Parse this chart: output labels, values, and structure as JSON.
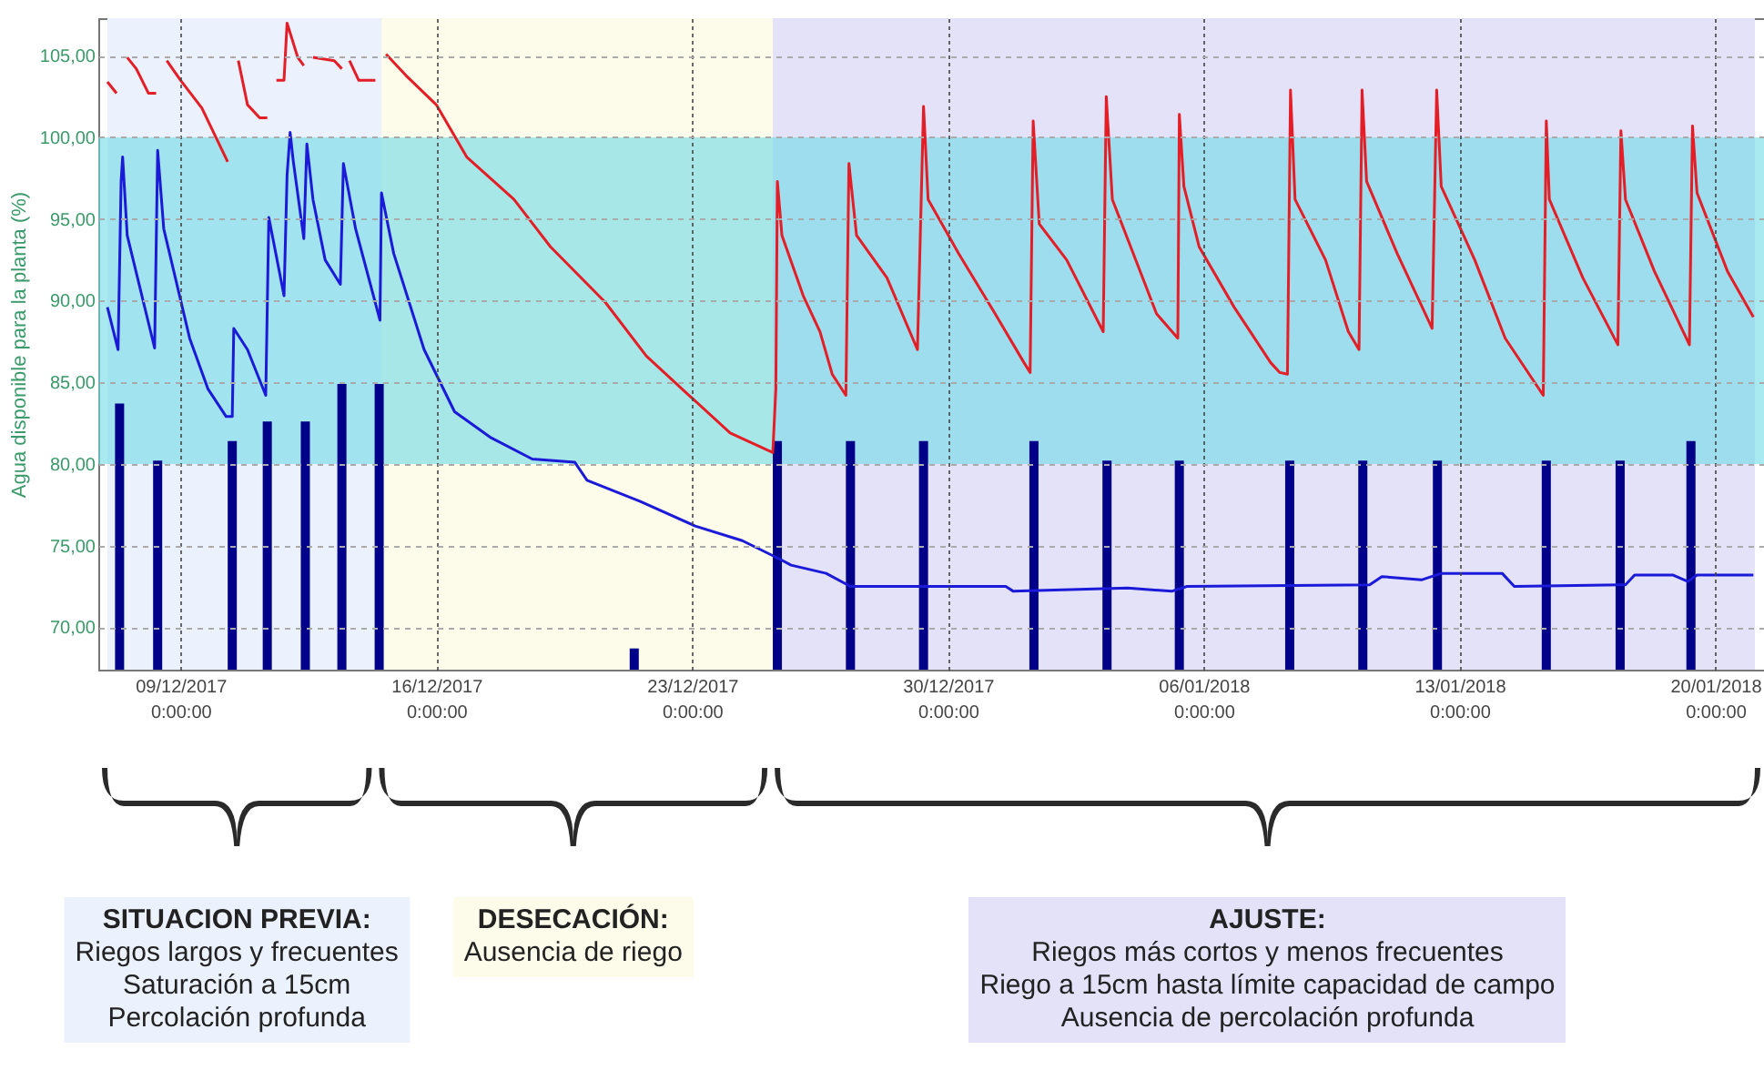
{
  "chart_data": {
    "type": "line",
    "ylabel": "Agua disponible para la planta (%)",
    "xlim": [
      "2017-12-07T00:00",
      "2018-01-21T02:00"
    ],
    "ylim": [
      67.4,
      107.3
    ],
    "xticks": [
      {
        "value": "2017-12-09",
        "label": "09/12/2017\n0:00:00"
      },
      {
        "value": "2017-12-16",
        "label": "16/12/2017\n0:00:00"
      },
      {
        "value": "2017-12-23",
        "label": "23/12/2017\n0:00:00"
      },
      {
        "value": "2017-12-30",
        "label": "30/12/2017\n0:00:00"
      },
      {
        "value": "2018-01-06",
        "label": "06/01/2018\n0:00:00"
      },
      {
        "value": "2018-01-13",
        "label": "13/01/2018\n0:00:00"
      },
      {
        "value": "2018-01-20",
        "label": "20/01/2018\n0:00:00"
      }
    ],
    "yticks": [
      {
        "value": 70,
        "label": "70,00"
      },
      {
        "value": 75,
        "label": "75,00"
      },
      {
        "value": 80,
        "label": "80,00"
      },
      {
        "value": 85,
        "label": "85,00"
      },
      {
        "value": 90,
        "label": "90,00"
      },
      {
        "value": 95,
        "label": "95,00"
      },
      {
        "value": 100,
        "label": "100,00"
      },
      {
        "value": 105,
        "label": "105,00"
      }
    ],
    "grid": true,
    "annotations": [
      "SITUACION PREVIA:\nRiegos largos y frecuentes\nSaturación a 15cm\nPercolación profunda",
      "DESECACIÓN:\nAusencia de riego",
      "AJUSTE:\nRiegos más cortos y menos frecuentes\nRiego a 15cm hasta límite capacidad de campo\nAusencia de percolación profunda"
    ],
    "bands": [
      {
        "axis": "x",
        "from": "2017-12-07T00:00",
        "to": "2017-12-14T12:00",
        "color": "#ebf1fd"
      },
      {
        "axis": "x",
        "from": "2017-12-14T12:00",
        "to": "2017-12-25T05:00",
        "color": "#fdfbe9"
      },
      {
        "axis": "x",
        "from": "2017-12-25T05:00",
        "to": "2018-01-21T02:00",
        "color": "#e3e2f8"
      },
      {
        "axis": "y",
        "from": 80,
        "to": 100,
        "color": "#70dae6"
      }
    ],
    "series": [
      {
        "type": "bar",
        "color": "#000088",
        "x": [
          "2017-12-07T08:00",
          "2017-12-08T09:00",
          "2017-12-10T10:00",
          "2017-12-11T09:00",
          "2017-12-12T10:00",
          "2017-12-13T10:00",
          "2017-12-14T10:30",
          "2017-12-21T10:00",
          "2017-12-25T08:00",
          "2017-12-27T08:00",
          "2017-12-29T08:00",
          "2018-01-01T08:30",
          "2018-01-03T08:30",
          "2018-01-05T08:00",
          "2018-01-08T08:30",
          "2018-01-10T08:30",
          "2018-01-12T09:30",
          "2018-01-15T09:00",
          "2018-01-17T09:30",
          "2018-01-19T08:00"
        ],
        "values": [
          83.7,
          80.2,
          81.4,
          82.6,
          82.6,
          84.9,
          84.9,
          68.7,
          81.4,
          81.4,
          81.4,
          81.4,
          80.2,
          80.2,
          80.2,
          80.2,
          80.2,
          80.2,
          80.2,
          81.4
        ]
      },
      {
        "color": "#e41e26",
        "x": [
          "2017-12-07T00:00",
          "2017-12-07T06:00",
          "2017-12-07T08:00",
          "2017-12-07T13:00",
          "2017-12-07T19:00",
          "2017-12-08T03:00",
          "2017-12-08T08:00",
          "2017-12-08T10:00",
          "2017-12-08T15:00",
          "2017-12-09T00:00",
          "2017-12-09T14:00",
          "2017-12-10T07:00",
          "2017-12-10T09:00",
          "2017-12-10T14:00",
          "2017-12-10T20:00",
          "2017-12-11T04:00",
          "2017-12-11T09:00",
          "2017-12-11T10:00",
          "2017-12-11T15:00",
          "2017-12-11T20:00",
          "2017-12-11T22:00",
          "2017-12-12T05:00",
          "2017-12-12T09:00",
          "2017-12-12T10:00",
          "2017-12-12T15:00",
          "2017-12-13T05:00",
          "2017-12-13T10:00",
          "2017-12-13T11:00",
          "2017-12-13T15:00",
          "2017-12-13T21:00",
          "2017-12-14T08:00",
          "2017-12-14T10:00",
          "2017-12-14T15:00",
          "2017-12-15T04:00",
          "2017-12-16T00:00",
          "2017-12-16T20:00",
          "2017-12-18T03:00",
          "2017-12-19T03:00",
          "2017-12-20T15:00",
          "2017-12-21T18:00",
          "2017-12-22T22:00",
          "2017-12-24T01:00",
          "2017-12-25T05:00",
          "2017-12-25T07:00",
          "2017-12-25T08:00",
          "2017-12-25T11:00",
          "2017-12-26T01:00",
          "2017-12-26T12:00",
          "2017-12-26T20:00",
          "2017-12-27T05:00",
          "2017-12-27T07:00",
          "2017-12-27T12:00",
          "2017-12-28T08:00",
          "2017-12-29T04:00",
          "2017-12-29T08:00",
          "2017-12-29T11:00",
          "2017-12-30T07:00",
          "2017-12-31T07:00",
          "2018-01-01T02:00",
          "2018-01-01T06:00",
          "2018-01-01T08:00",
          "2018-01-01T12:00",
          "2018-01-02T06:00",
          "2018-01-03T06:00",
          "2018-01-03T08:00",
          "2018-01-03T12:00",
          "2018-01-04T05:00",
          "2018-01-04T17:00",
          "2018-01-05T07:00",
          "2018-01-05T08:00",
          "2018-01-05T11:00",
          "2018-01-05T21:00",
          "2018-01-06T20:00",
          "2018-01-07T20:00",
          "2018-01-08T02:00",
          "2018-01-08T07:00",
          "2018-01-08T09:00",
          "2018-01-08T12:00",
          "2018-01-09T08:00",
          "2018-01-09T23:00",
          "2018-01-10T06:00",
          "2018-01-10T08:00",
          "2018-01-10T11:00",
          "2018-01-11T07:00",
          "2018-01-12T06:00",
          "2018-01-12T09:00",
          "2018-01-12T12:00",
          "2018-01-13T10:00",
          "2018-01-14T06:00",
          "2018-01-15T07:00",
          "2018-01-15T09:00",
          "2018-01-15T11:00",
          "2018-01-16T09:00",
          "2018-01-17T08:00",
          "2018-01-17T10:00",
          "2018-01-17T13:00",
          "2018-01-18T08:00",
          "2018-01-19T07:00",
          "2018-01-19T09:00",
          "2018-01-19T12:00",
          "2018-01-20T08:00",
          "2018-01-21T01:00"
        ],
        "values": [
          103.4,
          102.7,
          null,
          104.9,
          104.2,
          102.7,
          102.7,
          null,
          104.7,
          103.5,
          101.8,
          98.5,
          null,
          104.7,
          102.0,
          101.2,
          101.2,
          null,
          103.5,
          103.5,
          107.0,
          104.9,
          104.4,
          null,
          104.9,
          104.7,
          104.2,
          null,
          104.7,
          103.5,
          103.5,
          null,
          105.1,
          103.8,
          102.0,
          98.8,
          96.2,
          93.3,
          89.9,
          86.6,
          84.2,
          81.9,
          80.7,
          84.6,
          97.3,
          94.0,
          90.3,
          88.1,
          85.5,
          84.2,
          98.4,
          94.0,
          91.4,
          87.0,
          101.9,
          96.2,
          92.9,
          89.2,
          86.2,
          85.6,
          101.0,
          94.7,
          92.5,
          88.1,
          102.5,
          96.2,
          92.1,
          89.2,
          87.7,
          101.4,
          97.0,
          93.3,
          89.6,
          86.2,
          85.6,
          85.5,
          102.9,
          96.2,
          92.5,
          88.1,
          87.0,
          102.9,
          97.3,
          92.9,
          88.3,
          102.9,
          97.0,
          92.5,
          87.7,
          84.2,
          101.0,
          96.2,
          91.4,
          87.3,
          100.4,
          96.2,
          91.8,
          87.3,
          100.7,
          96.6,
          91.8,
          89.0
        ]
      },
      {
        "color": "#1a1ad8",
        "x": [
          "2017-12-07T00:00",
          "2017-12-07T07:00",
          "2017-12-07T09:00",
          "2017-12-07T10:00",
          "2017-12-07T13:00",
          "2017-12-08T07:00",
          "2017-12-08T09:00",
          "2017-12-08T13:00",
          "2017-12-09T06:00",
          "2017-12-09T18:00",
          "2017-12-10T06:00",
          "2017-12-10T10:00",
          "2017-12-10T11:00",
          "2017-12-10T20:00",
          "2017-12-11T08:00",
          "2017-12-11T10:00",
          "2017-12-11T20:00",
          "2017-12-11T22:00",
          "2017-12-12T00:00",
          "2017-12-12T02:00",
          "2017-12-12T09:00",
          "2017-12-12T11:00",
          "2017-12-12T15:00",
          "2017-12-12T23:00",
          "2017-12-13T09:00",
          "2017-12-13T11:00",
          "2017-12-13T19:00",
          "2017-12-14T11:00",
          "2017-12-14T12:00",
          "2017-12-14T20:00",
          "2017-12-15T16:00",
          "2017-12-16T12:00",
          "2017-12-17T12:00",
          "2017-12-18T15:00",
          "2017-12-19T19:00",
          "2017-12-20T03:00",
          "2017-12-21T14:00",
          "2017-12-23T02:00",
          "2017-12-24T09:00",
          "2017-12-25T09:00",
          "2017-12-25T17:00",
          "2017-12-26T16:00",
          "2017-12-27T08:00",
          "2017-12-31T14:00",
          "2017-12-31T19:00",
          "2018-01-03T22:00",
          "2018-01-05T03:00",
          "2018-01-05T13:00",
          "2018-01-10T13:00",
          "2018-01-10T21:00",
          "2018-01-11T23:00",
          "2018-01-12T12:00",
          "2018-01-14T04:00",
          "2018-01-14T12:00",
          "2018-01-17T13:00",
          "2018-01-17T19:00",
          "2018-01-18T20:00",
          "2018-01-19T06:00",
          "2018-01-19T12:00",
          "2018-01-21T01:00"
        ],
        "values": [
          89.6,
          87.0,
          97.3,
          98.8,
          94.0,
          87.1,
          99.2,
          94.4,
          87.7,
          84.6,
          82.9,
          82.9,
          88.3,
          87.0,
          84.2,
          95.1,
          90.3,
          97.7,
          100.3,
          98.6,
          93.8,
          99.6,
          96.2,
          92.5,
          91.0,
          98.4,
          94.4,
          88.8,
          96.6,
          92.9,
          87.0,
          83.2,
          81.6,
          80.3,
          80.1,
          79.0,
          77.7,
          76.2,
          75.3,
          74.2,
          73.8,
          73.3,
          72.5,
          72.5,
          72.2,
          72.4,
          72.2,
          72.5,
          72.6,
          73.1,
          72.9,
          73.3,
          73.3,
          72.5,
          72.6,
          73.2,
          73.2,
          72.8,
          73.2,
          73.2
        ]
      }
    ]
  }
}
